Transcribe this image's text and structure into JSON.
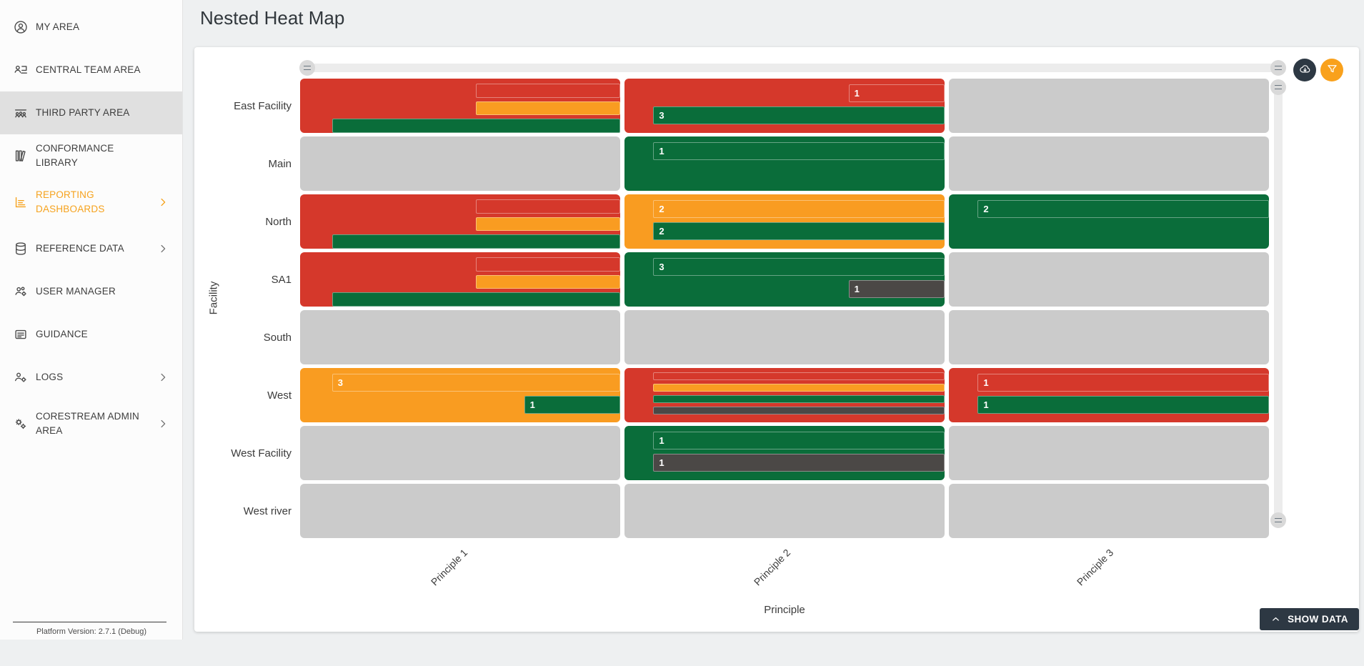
{
  "app": {
    "title": "Nested Heat Map",
    "platform_version": "Platform Version: 2.7.1 (Debug)"
  },
  "sidebar": {
    "accent_color": "#f6a21d",
    "items": [
      {
        "label": "MY AREA",
        "icon": "person-circle-icon",
        "chevron": false,
        "active": false,
        "accent": false
      },
      {
        "label": "CENTRAL TEAM AREA",
        "icon": "person-monitor-icon",
        "chevron": false,
        "active": false,
        "accent": false
      },
      {
        "label": "THIRD PARTY AREA",
        "icon": "people-group-icon",
        "chevron": false,
        "active": true,
        "accent": false
      },
      {
        "label": "CONFORMANCE LIBRARY",
        "icon": "library-books-icon",
        "chevron": false,
        "active": false,
        "accent": false
      },
      {
        "label": "REPORTING DASHBOARDS",
        "icon": "report-chart-icon",
        "chevron": true,
        "active": false,
        "accent": true
      },
      {
        "label": "REFERENCE DATA",
        "icon": "database-icon",
        "chevron": true,
        "active": false,
        "accent": false
      },
      {
        "label": "USER MANAGER",
        "icon": "users-gear-icon",
        "chevron": false,
        "active": false,
        "accent": false
      },
      {
        "label": "GUIDANCE",
        "icon": "guidance-card-icon",
        "chevron": false,
        "active": false,
        "accent": false
      },
      {
        "label": "LOGS",
        "icon": "person-gear-icon",
        "chevron": true,
        "active": false,
        "accent": false
      },
      {
        "label": "CORESTREAM ADMIN AREA",
        "icon": "double-gear-icon",
        "chevron": true,
        "active": false,
        "accent": false
      }
    ]
  },
  "toolbar": {
    "download_button": {
      "icon": "cloud-download-icon",
      "color": "#2d3843"
    },
    "filter_button": {
      "icon": "filter-funnel-icon",
      "color": "#f9a11c"
    }
  },
  "footer_button": {
    "label": "SHOW DATA",
    "icon": "chevron-up-icon"
  },
  "chart_data": {
    "type": "heatmap",
    "title": "Nested Heat Map",
    "xlabel": "Principle",
    "ylabel": "Facility",
    "columns": [
      "Principle 1",
      "Principle 2",
      "Principle 3"
    ],
    "rows": [
      "East Facility",
      "Main",
      "North",
      "SA1",
      "South",
      "West",
      "West Facility",
      "West river"
    ],
    "palette": {
      "red": "#d5382b",
      "orange": "#f99c21",
      "green": "#0a6d3a",
      "dark": "#4b4846",
      "empty": "#cbcbcb"
    },
    "cells": [
      [
        {
          "bg": "red",
          "bars": [
            {
              "color": "red",
              "value": null,
              "start_pct": 55
            },
            {
              "color": "orange",
              "value": null,
              "start_pct": 55
            },
            {
              "color": "green",
              "value": null,
              "start_pct": 10
            }
          ]
        },
        {
          "bg": "red",
          "bars": [
            {
              "color": "red",
              "value": 1,
              "start_pct": 70
            },
            {
              "color": "green",
              "value": 3,
              "start_pct": 9
            }
          ]
        },
        {
          "bg": "empty",
          "bars": []
        }
      ],
      [
        {
          "bg": "empty",
          "bars": []
        },
        {
          "bg": "green",
          "bars": [
            {
              "color": "green",
              "value": 1,
              "start_pct": 9
            }
          ]
        },
        {
          "bg": "empty",
          "bars": []
        }
      ],
      [
        {
          "bg": "red",
          "bars": [
            {
              "color": "red",
              "value": null,
              "start_pct": 55
            },
            {
              "color": "orange",
              "value": null,
              "start_pct": 55
            },
            {
              "color": "green",
              "value": null,
              "start_pct": 10
            }
          ]
        },
        {
          "bg": "orange",
          "bars": [
            {
              "color": "orange",
              "value": 2,
              "start_pct": 9
            },
            {
              "color": "green",
              "value": 2,
              "start_pct": 9
            }
          ]
        },
        {
          "bg": "green",
          "bars": [
            {
              "color": "green",
              "value": 2,
              "start_pct": 9
            }
          ]
        }
      ],
      [
        {
          "bg": "red",
          "bars": [
            {
              "color": "red",
              "value": null,
              "start_pct": 55
            },
            {
              "color": "orange",
              "value": null,
              "start_pct": 55
            },
            {
              "color": "green",
              "value": null,
              "start_pct": 10
            }
          ]
        },
        {
          "bg": "green",
          "bars": [
            {
              "color": "green",
              "value": 3,
              "start_pct": 9
            },
            {
              "color": "dark",
              "value": 1,
              "start_pct": 70
            }
          ]
        },
        {
          "bg": "empty",
          "bars": []
        }
      ],
      [
        {
          "bg": "empty",
          "bars": []
        },
        {
          "bg": "empty",
          "bars": []
        },
        {
          "bg": "empty",
          "bars": []
        }
      ],
      [
        {
          "bg": "orange",
          "bars": [
            {
              "color": "orange",
              "value": 3,
              "start_pct": 10
            },
            {
              "color": "green",
              "value": 1,
              "start_pct": 70
            }
          ]
        },
        {
          "bg": "red",
          "thin": true,
          "bars": [
            {
              "color": "red",
              "value": null,
              "start_pct": 9
            },
            {
              "color": "orange",
              "value": null,
              "start_pct": 9
            },
            {
              "color": "green",
              "value": null,
              "start_pct": 9
            },
            {
              "color": "dark",
              "value": null,
              "start_pct": 9
            }
          ]
        },
        {
          "bg": "red",
          "bars": [
            {
              "color": "red",
              "value": 1,
              "start_pct": 9
            },
            {
              "color": "green",
              "value": 1,
              "start_pct": 9
            }
          ]
        }
      ],
      [
        {
          "bg": "empty",
          "bars": []
        },
        {
          "bg": "green",
          "bars": [
            {
              "color": "green",
              "value": 1,
              "start_pct": 9
            },
            {
              "color": "dark",
              "value": 1,
              "start_pct": 9
            }
          ]
        },
        {
          "bg": "empty",
          "bars": []
        }
      ],
      [
        {
          "bg": "empty",
          "bars": []
        },
        {
          "bg": "empty",
          "bars": []
        },
        {
          "bg": "empty",
          "bars": []
        }
      ]
    ]
  }
}
